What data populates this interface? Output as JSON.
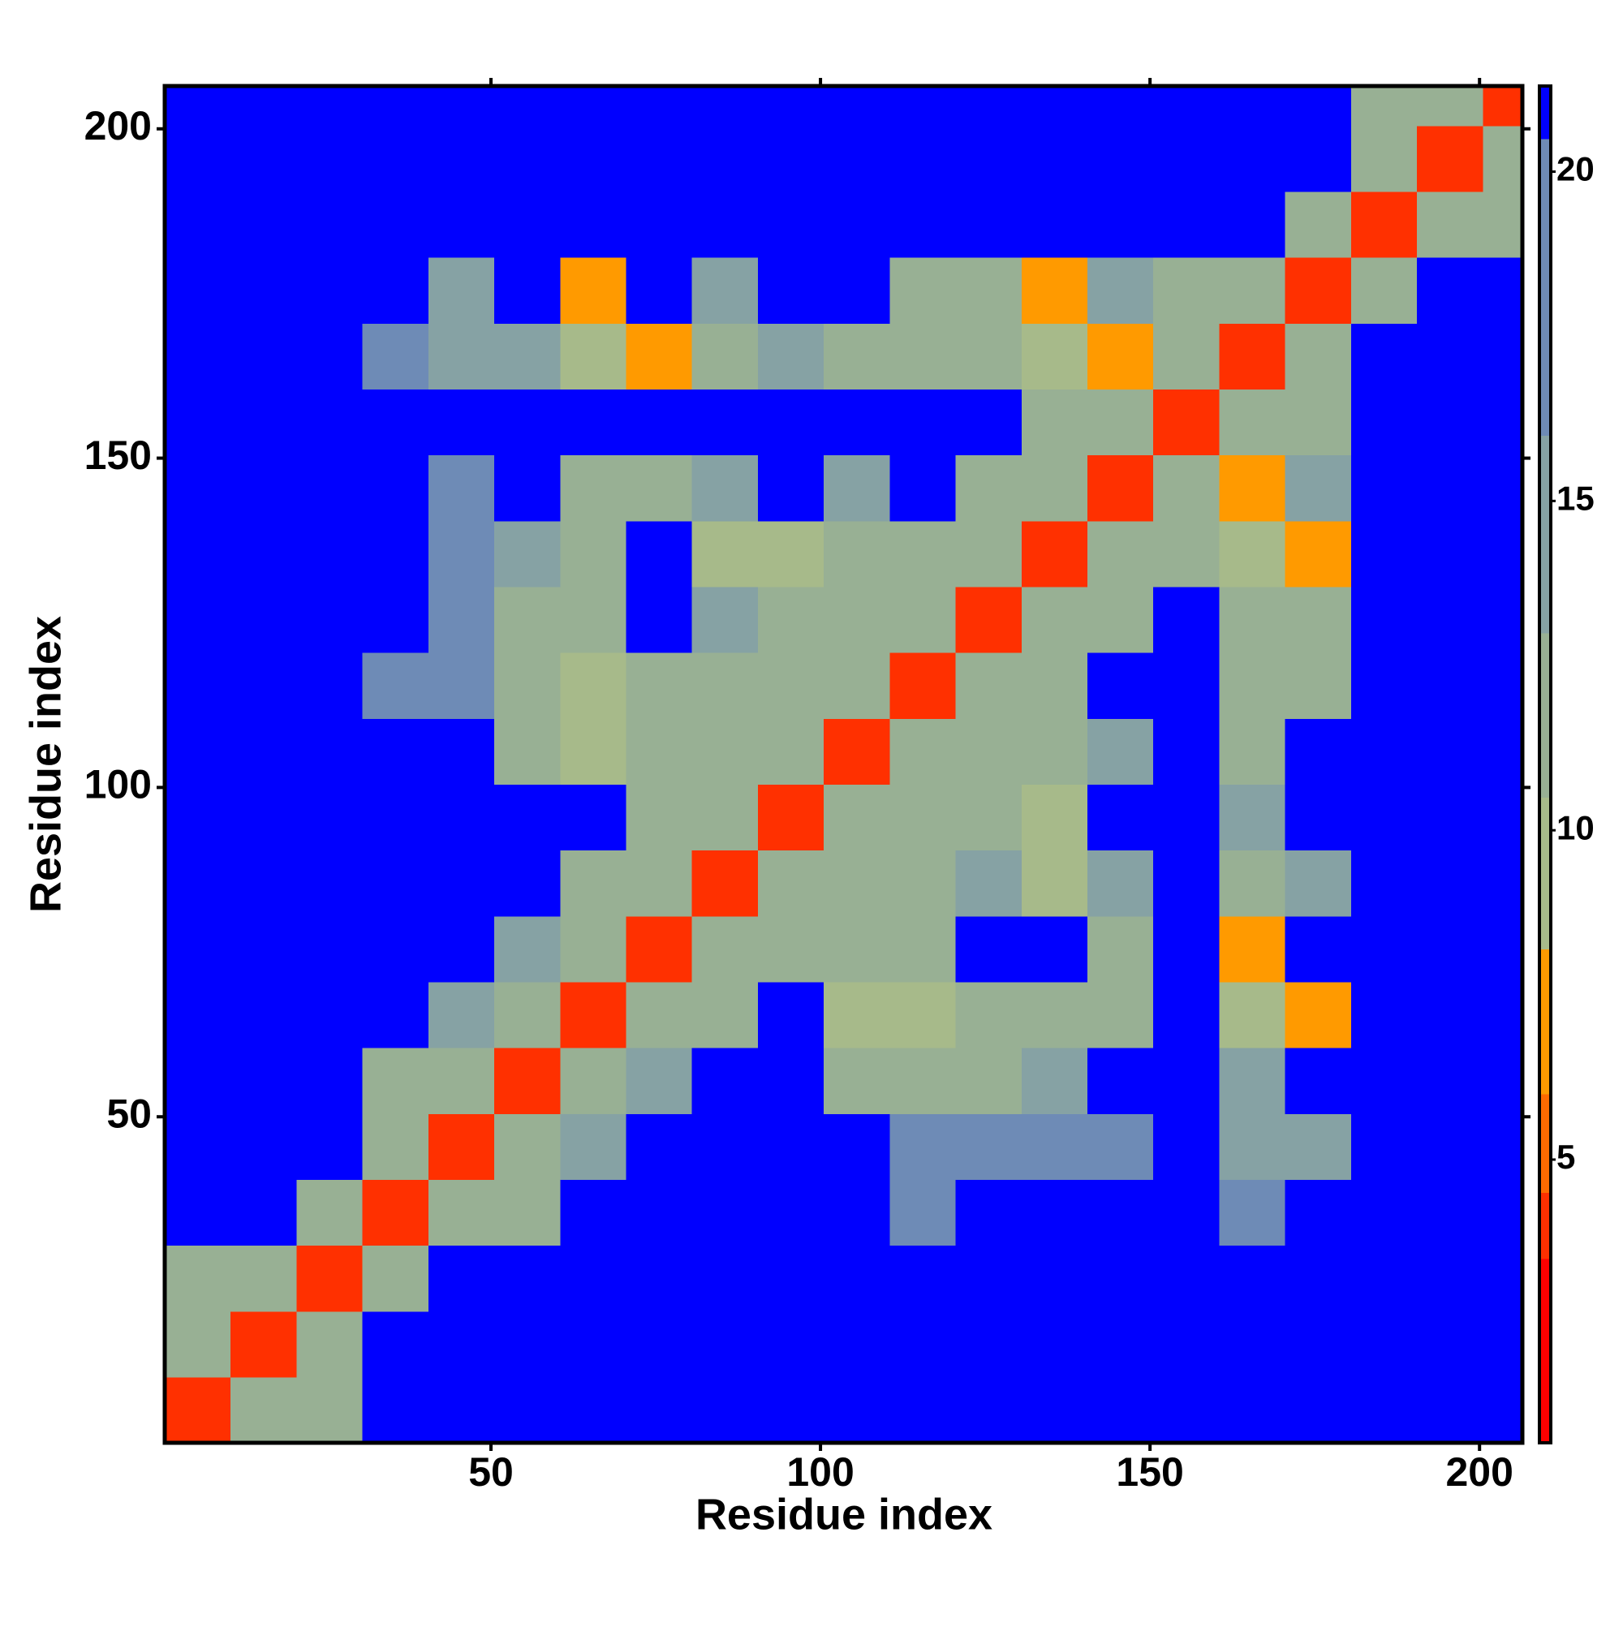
{
  "chart_data": {
    "type": "heatmap",
    "xlabel": "Residue index",
    "ylabel": "Residue index",
    "xlim": [
      0.5,
      206.5
    ],
    "ylim": [
      0.5,
      206.5
    ],
    "xticks": [
      50,
      100,
      150,
      200
    ],
    "yticks": [
      50,
      100,
      150,
      200
    ],
    "xbins": [
      0.5,
      10.5,
      20.5,
      30.5,
      40.5,
      50.5,
      60.5,
      70.5,
      80.5,
      90.5,
      100.5,
      110.5,
      120.5,
      130.5,
      140.5,
      150.5,
      160.5,
      170.5,
      180.5,
      190.5,
      200.5,
      206.5
    ],
    "ybins": [
      0.5,
      10.5,
      20.5,
      30.5,
      40.5,
      50.5,
      60.5,
      70.5,
      80.5,
      90.5,
      100.5,
      110.5,
      120.5,
      130.5,
      140.5,
      150.5,
      160.5,
      170.5,
      180.5,
      190.5,
      200.5,
      206.5
    ],
    "values": [
      [
        4,
        11,
        13,
        21,
        21,
        21,
        21,
        21,
        21,
        21,
        21,
        21,
        21,
        21,
        21,
        21,
        21,
        21,
        21,
        21,
        21
      ],
      [
        11,
        4,
        11,
        21,
        21,
        21,
        21,
        21,
        21,
        21,
        21,
        21,
        21,
        21,
        21,
        21,
        21,
        21,
        21,
        21,
        21
      ],
      [
        13,
        11,
        4,
        11,
        21,
        21,
        21,
        21,
        21,
        21,
        21,
        21,
        21,
        21,
        21,
        21,
        21,
        21,
        21,
        21,
        21
      ],
      [
        21,
        21,
        11,
        4,
        11,
        13,
        21,
        21,
        21,
        21,
        21,
        19,
        21,
        21,
        21,
        21,
        17,
        21,
        21,
        21,
        21
      ],
      [
        21,
        21,
        21,
        11,
        4,
        11,
        15,
        21,
        21,
        21,
        21,
        18,
        17,
        17,
        18,
        21,
        16,
        16,
        21,
        21,
        21
      ],
      [
        21,
        21,
        21,
        13,
        11,
        4,
        11,
        14,
        21,
        21,
        13,
        12,
        12,
        14,
        21,
        21,
        15,
        21,
        21,
        21,
        21
      ],
      [
        21,
        21,
        21,
        21,
        15,
        11,
        4,
        11,
        11,
        21,
        10,
        9,
        13,
        13,
        13,
        21,
        9,
        8,
        21,
        21,
        21
      ],
      [
        21,
        21,
        21,
        21,
        21,
        14,
        11,
        4,
        11,
        11,
        11,
        12,
        21,
        21,
        12,
        21,
        8,
        21,
        21,
        21,
        21
      ],
      [
        21,
        21,
        21,
        21,
        21,
        21,
        11,
        11,
        4,
        11,
        12,
        13,
        16,
        9,
        14,
        21,
        13,
        14,
        21,
        21,
        21
      ],
      [
        21,
        21,
        21,
        21,
        21,
        21,
        21,
        11,
        11,
        4,
        11,
        12,
        13,
        10,
        21,
        21,
        14,
        21,
        21,
        21,
        21
      ],
      [
        21,
        21,
        21,
        21,
        21,
        13,
        10,
        11,
        12,
        11,
        4,
        11,
        11,
        13,
        14,
        21,
        13,
        21,
        21,
        21,
        21
      ],
      [
        21,
        21,
        21,
        19,
        18,
        12,
        9,
        12,
        13,
        12,
        11,
        4,
        11,
        12,
        21,
        21,
        12,
        13,
        21,
        21,
        21
      ],
      [
        21,
        21,
        21,
        21,
        17,
        12,
        13,
        21,
        16,
        13,
        11,
        11,
        4,
        11,
        12,
        21,
        12,
        13,
        21,
        21,
        21
      ],
      [
        21,
        21,
        21,
        21,
        17,
        14,
        13,
        21,
        9,
        10,
        13,
        12,
        11,
        4,
        11,
        13,
        10,
        8,
        21,
        21,
        21
      ],
      [
        21,
        21,
        21,
        21,
        18,
        21,
        13,
        12,
        14,
        21,
        14,
        21,
        12,
        11,
        4,
        11,
        7,
        14,
        21,
        21,
        21
      ],
      [
        21,
        21,
        21,
        21,
        21,
        21,
        21,
        21,
        21,
        21,
        21,
        21,
        21,
        13,
        11,
        4,
        11,
        12,
        21,
        21,
        21
      ],
      [
        21,
        21,
        21,
        17,
        16,
        15,
        9,
        8,
        13,
        14,
        13,
        12,
        12,
        10,
        7,
        11,
        4,
        11,
        21,
        21,
        21
      ],
      [
        21,
        21,
        21,
        21,
        16,
        21,
        8,
        21,
        14,
        21,
        21,
        13,
        13,
        8,
        14,
        12,
        11,
        4,
        11,
        21,
        21
      ],
      [
        21,
        21,
        21,
        21,
        21,
        21,
        21,
        21,
        21,
        21,
        21,
        21,
        21,
        21,
        21,
        21,
        21,
        11,
        4,
        11,
        13
      ],
      [
        21,
        21,
        21,
        21,
        21,
        21,
        21,
        21,
        21,
        21,
        21,
        21,
        21,
        21,
        21,
        21,
        21,
        21,
        11,
        4,
        11
      ],
      [
        21,
        21,
        21,
        21,
        21,
        21,
        21,
        21,
        21,
        21,
        21,
        21,
        21,
        21,
        21,
        21,
        21,
        21,
        13,
        11,
        4
      ]
    ],
    "colorbar_lim": [
      0.7,
      21.3
    ],
    "colorbar_ticks": [
      5,
      10,
      15,
      20
    ],
    "colorscale": [
      [
        3.5,
        "#ff0000"
      ],
      [
        4.5,
        "#ff3000"
      ],
      [
        6,
        "#ff6a00"
      ],
      [
        8.2,
        "#ff9a00"
      ],
      [
        10.5,
        "#a7ba8a"
      ],
      [
        13,
        "#98b094"
      ],
      [
        16,
        "#86a2a4"
      ],
      [
        20.5,
        "#6e8bb6"
      ],
      [
        21.3,
        "#0000ff"
      ]
    ]
  }
}
